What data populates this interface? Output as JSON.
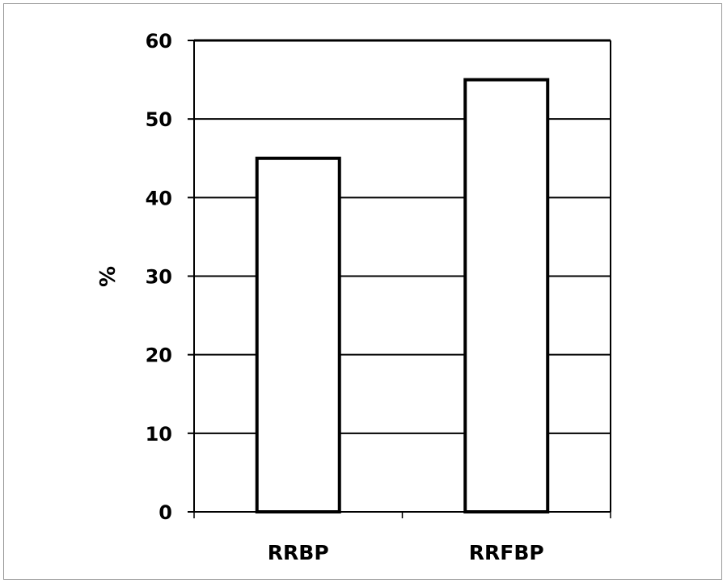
{
  "chart_data": {
    "type": "bar",
    "categories": [
      "RRBP",
      "RRFBP"
    ],
    "values": [
      45,
      55
    ],
    "title": "",
    "xlabel": "",
    "ylabel": "%",
    "ylim": [
      0,
      60
    ],
    "yticks": [
      0,
      10,
      20,
      30,
      40,
      50,
      60
    ],
    "grid": true,
    "legend": "none",
    "colors": {
      "bar_fill": "#ffffff",
      "bar_stroke": "#000000",
      "grid": "#000000"
    }
  }
}
